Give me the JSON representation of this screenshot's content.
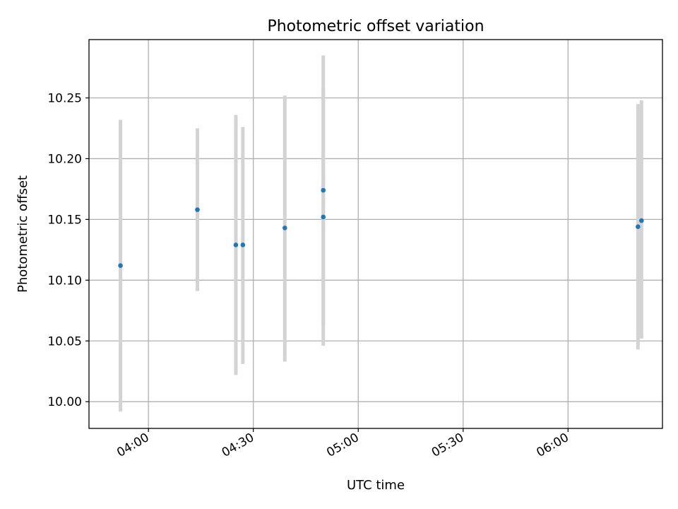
{
  "chart_data": {
    "type": "scatter",
    "title": "Photometric offset variation",
    "xlabel": "UTC time",
    "ylabel": "Photometric offset",
    "x_axis_type": "time",
    "xlim": [
      "03:43",
      "06:27"
    ],
    "ylim": [
      9.978,
      10.298
    ],
    "grid": true,
    "x_ticks": [
      "04:00",
      "04:30",
      "05:00",
      "05:30",
      "06:00"
    ],
    "y_ticks": [
      10.0,
      10.05,
      10.1,
      10.15,
      10.2,
      10.25
    ],
    "y_tick_labels": [
      "10.00",
      "10.05",
      "10.10",
      "10.15",
      "10.20",
      "10.25"
    ],
    "marker_color": "#1f77b4",
    "errorbar_color": "#d3d3d3",
    "points": [
      {
        "x": "03:52",
        "y": 10.112,
        "yerr_low": 9.992,
        "yerr_high": 10.232
      },
      {
        "x": "04:14",
        "y": 10.158,
        "yerr_low": 10.091,
        "yerr_high": 10.225
      },
      {
        "x": "04:25",
        "y": 10.129,
        "yerr_low": 10.022,
        "yerr_high": 10.236
      },
      {
        "x": "04:27",
        "y": 10.129,
        "yerr_low": 10.031,
        "yerr_high": 10.226
      },
      {
        "x": "04:39",
        "y": 10.143,
        "yerr_low": 10.033,
        "yerr_high": 10.252
      },
      {
        "x": "04:50",
        "y": 10.174,
        "yerr_low": 10.063,
        "yerr_high": 10.285
      },
      {
        "x": "04:50",
        "y": 10.152,
        "yerr_low": 10.046,
        "yerr_high": 10.258
      },
      {
        "x": "06:20",
        "y": 10.144,
        "yerr_low": 10.043,
        "yerr_high": 10.245
      },
      {
        "x": "06:21",
        "y": 10.149,
        "yerr_low": 10.052,
        "yerr_high": 10.248
      }
    ]
  }
}
